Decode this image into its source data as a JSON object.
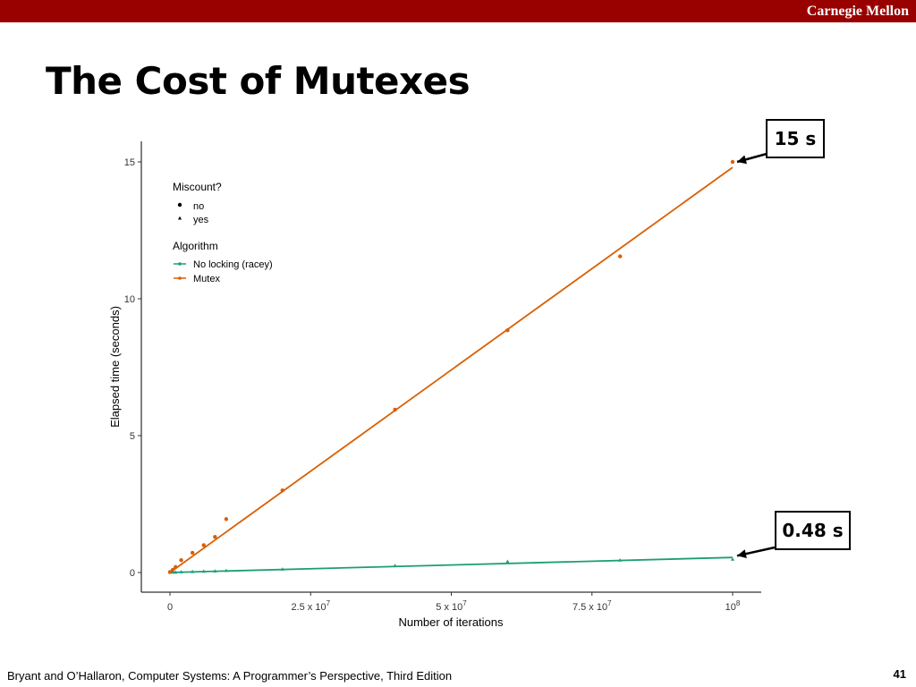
{
  "header": {
    "brand": "Carnegie Mellon"
  },
  "slide": {
    "title": "The Cost of Mutexes"
  },
  "callouts": {
    "top": "15 s",
    "bottom": "0.48 s"
  },
  "footer": {
    "citation": "Bryant and O’Hallaron, Computer Systems: A Programmer’s Perspective, Third Edition",
    "page_number": "41"
  },
  "chart_data": {
    "type": "scatter",
    "xlabel": "Number of iterations",
    "ylabel": "Elapsed time (seconds)",
    "xlim": [
      0,
      100000000
    ],
    "ylim": [
      0,
      15
    ],
    "grid": false,
    "x_ticks": [
      {
        "value": 0,
        "base": "0",
        "exp": ""
      },
      {
        "value": 25000000,
        "base": "2.5 x 10",
        "exp": "7"
      },
      {
        "value": 50000000,
        "base": "5 x 10",
        "exp": "7"
      },
      {
        "value": 75000000,
        "base": "7.5 x 10",
        "exp": "7"
      },
      {
        "value": 100000000,
        "base": "10",
        "exp": "8"
      }
    ],
    "y_ticks": [
      {
        "value": 0,
        "label": "0"
      },
      {
        "value": 5,
        "label": "5"
      },
      {
        "value": 10,
        "label": "10"
      },
      {
        "value": 15,
        "label": "15"
      }
    ],
    "legend": {
      "placement": "top-left",
      "shape_title": "Miscount?",
      "shape_items": [
        {
          "label": "no",
          "shape": "circle"
        },
        {
          "label": "yes",
          "shape": "triangle"
        }
      ],
      "color_title": "Algorithm"
    },
    "series": [
      {
        "name": "No locking (racey)",
        "color": "#1b9e77",
        "shape": "triangle",
        "fit": [
          [
            0,
            0.0
          ],
          [
            100000000,
            0.55
          ]
        ],
        "points": [
          [
            0,
            0.0
          ],
          [
            500000,
            0.01
          ],
          [
            1000000,
            0.01
          ],
          [
            2000000,
            0.02
          ],
          [
            4000000,
            0.03
          ],
          [
            6000000,
            0.04
          ],
          [
            8000000,
            0.05
          ],
          [
            10000000,
            0.07
          ],
          [
            20000000,
            0.12
          ],
          [
            40000000,
            0.25
          ],
          [
            60000000,
            0.4
          ],
          [
            80000000,
            0.45
          ],
          [
            100000000,
            0.48
          ]
        ]
      },
      {
        "name": "Mutex",
        "color": "#d95f02",
        "shape": "circle",
        "fit": [
          [
            0,
            0.0
          ],
          [
            100000000,
            14.8
          ]
        ],
        "points": [
          [
            0,
            0.02
          ],
          [
            500000,
            0.1
          ],
          [
            1000000,
            0.2
          ],
          [
            2000000,
            0.45
          ],
          [
            4000000,
            0.72
          ],
          [
            6000000,
            1.0
          ],
          [
            8000000,
            1.3
          ],
          [
            10000000,
            1.95
          ],
          [
            20000000,
            3.0
          ],
          [
            40000000,
            5.95
          ],
          [
            60000000,
            8.85
          ],
          [
            80000000,
            11.55
          ],
          [
            100000000,
            15.0
          ]
        ]
      }
    ]
  }
}
